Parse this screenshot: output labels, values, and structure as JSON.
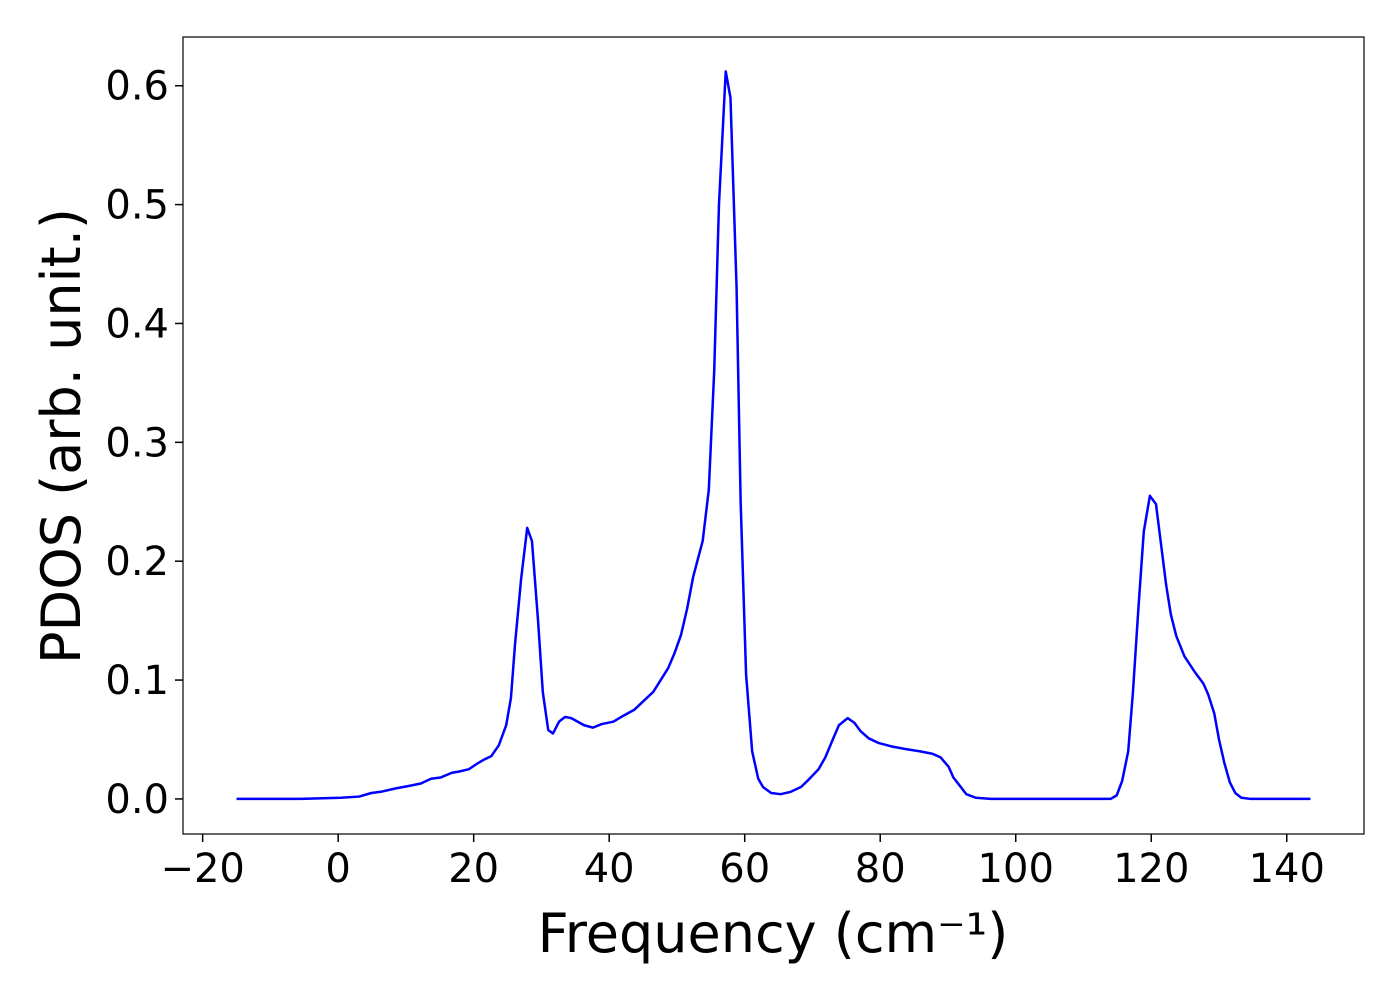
{
  "chart_data": {
    "type": "line",
    "xlabel": "Frequency (cm⁻¹)",
    "ylabel": "PDOS (arb. unit.)",
    "xlim": [
      -22.9,
      151.4
    ],
    "ylim": [
      -0.0295,
      0.641
    ],
    "xticks": [
      {
        "value": -20,
        "label": "−20"
      },
      0,
      20,
      40,
      60,
      80,
      100,
      120,
      140
    ],
    "yticks": [
      {
        "value": 0,
        "label": "0.0"
      },
      0.1,
      0.2,
      0.3,
      0.4,
      0.5,
      0.6
    ],
    "grid": false,
    "series": [
      {
        "color": "#0000ff",
        "x": [
          -15,
          -5.5,
          0.4,
          3.1,
          4.9,
          6.3,
          8.6,
          10.5,
          12.2,
          13.7,
          15.1,
          16.8,
          17.8,
          19.3,
          20.6,
          21.5,
          22.6,
          23.7,
          24.8,
          25.5,
          26.1,
          27,
          27.9,
          28.6,
          29.5,
          30.2,
          31,
          31.7,
          32.6,
          33.5,
          34.4,
          36.3,
          37.6,
          38.9,
          40.6,
          42.1,
          43.7,
          45,
          46.5,
          47.6,
          48.7,
          49.6,
          50.6,
          51.5,
          52.4,
          53.8,
          54.7,
          55.5,
          56.2,
          57.2,
          57.9,
          58.8,
          59.4,
          60.2,
          61.1,
          62,
          62.7,
          63.9,
          65.3,
          66.8,
          68.3,
          69.4,
          70.9,
          71.9,
          73,
          73.9,
          75.2,
          76.2,
          77.1,
          78.3,
          79.8,
          81.8,
          83.7,
          85.9,
          87.7,
          88.9,
          90.1,
          90.8,
          91.9,
          92.7,
          94.1,
          96.3,
          114,
          114.9,
          115.7,
          116.6,
          117.3,
          118.1,
          118.9,
          119.8,
          120.7,
          122.2,
          122.9,
          123.7,
          124.9,
          126.4,
          127.7,
          128.4,
          129.3,
          130,
          130.8,
          131.6,
          132.4,
          133.3,
          134.7,
          143.5
        ],
        "values": [
          0,
          0,
          0.001,
          0.002,
          0.005,
          0.006,
          0.009,
          0.011,
          0.013,
          0.017,
          0.018,
          0.022,
          0.023,
          0.025,
          0.03,
          0.033,
          0.036,
          0.045,
          0.062,
          0.085,
          0.13,
          0.185,
          0.228,
          0.217,
          0.15,
          0.09,
          0.058,
          0.055,
          0.065,
          0.069,
          0.068,
          0.062,
          0.06,
          0.063,
          0.065,
          0.07,
          0.075,
          0.082,
          0.09,
          0.1,
          0.11,
          0.122,
          0.138,
          0.16,
          0.187,
          0.217,
          0.26,
          0.36,
          0.5,
          0.612,
          0.59,
          0.43,
          0.25,
          0.105,
          0.04,
          0.017,
          0.01,
          0.005,
          0.004,
          0.006,
          0.01,
          0.016,
          0.025,
          0.035,
          0.05,
          0.062,
          0.068,
          0.064,
          0.057,
          0.051,
          0.047,
          0.044,
          0.042,
          0.04,
          0.038,
          0.035,
          0.027,
          0.018,
          0.01,
          0.004,
          0.001,
          0,
          0,
          0.003,
          0.015,
          0.04,
          0.09,
          0.16,
          0.225,
          0.255,
          0.248,
          0.18,
          0.155,
          0.137,
          0.12,
          0.107,
          0.097,
          0.088,
          0.072,
          0.05,
          0.03,
          0.014,
          0.005,
          0.001,
          0,
          0
        ]
      }
    ]
  }
}
